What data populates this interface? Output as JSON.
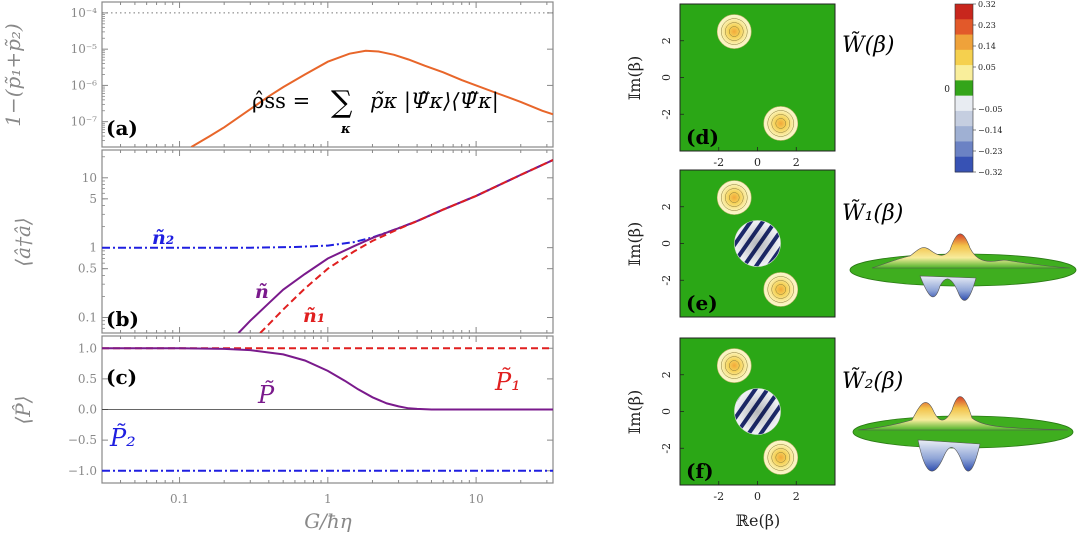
{
  "chart_data": [
    {
      "type": "line",
      "panel_label": "(a)",
      "ylabel": "1−(p̃₁+p̃₂)",
      "y_scale": "log",
      "x_scale": "log",
      "xlim": [
        0.03,
        33
      ],
      "ylim": [
        2e-08,
        0.0002
      ],
      "yticks": [
        {
          "v": 0.0001,
          "label": "10⁻⁴"
        },
        {
          "v": 1e-05,
          "label": "10⁻⁵"
        },
        {
          "v": 1e-06,
          "label": "10⁻⁶"
        },
        {
          "v": 1e-07,
          "label": "10⁻⁷"
        }
      ],
      "reference_line": {
        "y": 0.0001,
        "style": "dotted"
      },
      "annotation": "ρ̂ss = ∑κ p̃κ |Ψ̃κ⟩⟨Ψ̃κ|",
      "series": [
        {
          "color": "#e8662a",
          "style": "solid",
          "x": [
            0.12,
            0.16,
            0.2,
            0.3,
            0.4,
            0.5,
            0.7,
            1.0,
            1.4,
            1.8,
            2.2,
            2.8,
            3.5,
            4.5,
            6,
            8,
            10,
            14,
            20,
            28,
            33
          ],
          "y": [
            2e-08,
            4e-08,
            7e-08,
            2.2e-07,
            5e-07,
            9e-07,
            2e-06,
            4.5e-06,
            7.5e-06,
            9e-06,
            8.6e-06,
            7e-06,
            5.2e-06,
            3.5e-06,
            2.3e-06,
            1.4e-06,
            1e-06,
            6e-07,
            3.5e-07,
            2e-07,
            1.6e-07
          ]
        }
      ]
    },
    {
      "type": "line",
      "panel_label": "(b)",
      "ylabel": "⟨â†â⟩",
      "y_scale": "log",
      "x_scale": "log",
      "xlim": [
        0.03,
        33
      ],
      "ylim": [
        0.06,
        25
      ],
      "yticks": [
        {
          "v": 10,
          "label": "10"
        },
        {
          "v": 5,
          "label": "5"
        },
        {
          "v": 1,
          "label": "1"
        },
        {
          "v": 0.5,
          "label": "0.5"
        },
        {
          "v": 0.1,
          "label": "0.1"
        }
      ],
      "series": [
        {
          "name": "ñ₂",
          "color": "#1f1fe0",
          "style": "dashdot",
          "x": [
            0.03,
            0.1,
            0.3,
            0.6,
            1.0,
            1.5,
            2.0,
            2.5,
            3.0,
            4,
            6,
            10,
            20,
            33
          ],
          "y": [
            1.0,
            1.0,
            1.0,
            1.02,
            1.07,
            1.2,
            1.4,
            1.65,
            1.9,
            2.4,
            3.5,
            5.5,
            11,
            18
          ]
        },
        {
          "name": "ñ",
          "color": "#7a1a8c",
          "style": "solid",
          "x": [
            0.25,
            0.3,
            0.4,
            0.5,
            0.7,
            1.0,
            1.5,
            2.0,
            3.0,
            4,
            6,
            10,
            20,
            33
          ],
          "y": [
            0.06,
            0.09,
            0.16,
            0.25,
            0.42,
            0.7,
            1.05,
            1.38,
            1.9,
            2.4,
            3.5,
            5.5,
            11,
            18
          ]
        },
        {
          "name": "ñ₁",
          "color": "#e01f1f",
          "style": "dashed",
          "x": [
            0.35,
            0.4,
            0.5,
            0.7,
            1.0,
            1.5,
            2.0,
            3.0,
            4,
            6,
            10,
            20,
            33
          ],
          "y": [
            0.06,
            0.08,
            0.13,
            0.26,
            0.5,
            0.88,
            1.25,
            1.85,
            2.4,
            3.5,
            5.5,
            11,
            18
          ]
        }
      ]
    },
    {
      "type": "line",
      "panel_label": "(c)",
      "ylabel": "⟨P̂⟩",
      "x_scale": "log",
      "xlim": [
        0.03,
        33
      ],
      "ylim": [
        -1.2,
        1.2
      ],
      "xlabel": "G/ħη",
      "xticks": [
        {
          "v": 0.1,
          "label": "0.1"
        },
        {
          "v": 1,
          "label": "1"
        },
        {
          "v": 10,
          "label": "10"
        }
      ],
      "yticks": [
        {
          "v": 1,
          "label": "1.0"
        },
        {
          "v": 0.5,
          "label": "0.5"
        },
        {
          "v": 0,
          "label": "0.0"
        },
        {
          "v": -0.5,
          "label": "−0.5"
        },
        {
          "v": -1,
          "label": "−1.0"
        }
      ],
      "series": [
        {
          "name": "P̃₁",
          "color": "#e01f1f",
          "style": "dashed",
          "x": [
            0.03,
            33
          ],
          "y": [
            1,
            1
          ]
        },
        {
          "name": "P̃₂",
          "color": "#1f1fe0",
          "style": "dashdot",
          "x": [
            0.03,
            33
          ],
          "y": [
            -1,
            -1
          ]
        },
        {
          "name": "P̃",
          "color": "#7a1a8c",
          "style": "solid",
          "x": [
            0.03,
            0.1,
            0.2,
            0.3,
            0.5,
            0.7,
            1.0,
            1.3,
            1.6,
            2.0,
            2.5,
            3.0,
            3.5,
            4,
            5,
            7,
            10,
            33
          ],
          "y": [
            1.0,
            1.0,
            0.99,
            0.97,
            0.9,
            0.8,
            0.63,
            0.47,
            0.33,
            0.2,
            0.1,
            0.05,
            0.02,
            0.01,
            0.0,
            0.0,
            0.0,
            0.0
          ]
        }
      ]
    },
    {
      "type": "heatmap",
      "panel_label": "(d)",
      "title": "W̃(β)",
      "xlabel": "ℝe(β)",
      "ylabel": "𝕀m(β)",
      "xlim": [
        -4,
        4
      ],
      "ylim": [
        -4,
        4
      ],
      "xticks": [
        -2,
        0,
        2
      ],
      "yticks": [
        2,
        0,
        -2
      ],
      "blobs": [
        {
          "x": -1.2,
          "y": 2.5,
          "kind": "gaussian"
        },
        {
          "x": 1.2,
          "y": -2.5,
          "kind": "gaussian"
        }
      ]
    },
    {
      "type": "heatmap",
      "panel_label": "(e)",
      "title": "W̃₁(β)",
      "ylabel": "𝕀m(β)",
      "xlim": [
        -4,
        4
      ],
      "ylim": [
        -4,
        4
      ],
      "yticks": [
        2,
        0,
        -2
      ],
      "blobs": [
        {
          "x": -1.2,
          "y": 2.5,
          "kind": "gaussian"
        },
        {
          "x": 0,
          "y": 0,
          "kind": "fringe"
        },
        {
          "x": 1.2,
          "y": -2.5,
          "kind": "gaussian"
        }
      ]
    },
    {
      "type": "heatmap",
      "panel_label": "(f)",
      "title": "W̃₂(β)",
      "ylabel": "𝕀m(β)",
      "xlim": [
        -4,
        4
      ],
      "ylim": [
        -4,
        4
      ],
      "yticks": [
        2,
        0,
        -2
      ],
      "blobs": [
        {
          "x": -1.2,
          "y": 2.5,
          "kind": "gaussian"
        },
        {
          "x": 0,
          "y": 0,
          "kind": "fringe"
        },
        {
          "x": 1.2,
          "y": -2.5,
          "kind": "gaussian"
        }
      ]
    }
  ],
  "colorbar": {
    "ticks": [
      "0.32",
      "0.23",
      "0.14",
      "0.05",
      "0",
      "−0.05",
      "−0.14",
      "−0.23",
      "−0.32"
    ],
    "colors": [
      "#c8261d",
      "#e2592a",
      "#efa23a",
      "#f5d04e",
      "#f9ee9b",
      "#34a51a",
      "#e8ecf2",
      "#c5cee0",
      "#9fb0d3",
      "#6b82c4",
      "#3752b4"
    ]
  },
  "labels": {
    "a": "(a)",
    "b": "(b)",
    "c": "(c)",
    "d": "(d)",
    "e": "(e)",
    "f": "(f)",
    "n2": "ñ₂",
    "n": "ñ",
    "n1": "ñ₁",
    "P": "P̃",
    "P1": "P̃₁",
    "P2": "P̃₂",
    "formula_lhs": "ρ̂ss = ",
    "formula_sum": "∑",
    "formula_kappa": "κ",
    "formula_rhs": "p̃κ |Ψ̃κ⟩⟨Ψ̃κ|",
    "ylab_a": "1−(p̃₁+p̃₂)",
    "ylab_b": "⟨â†â⟩",
    "ylab_c": "⟨P̂⟩",
    "xlab": "G/ħη",
    "W": "W̃(β)",
    "W1": "W̃₁(β)",
    "W2": "W̃₂(β)",
    "im": "𝕀m(β)",
    "re": "ℝe(β)"
  }
}
